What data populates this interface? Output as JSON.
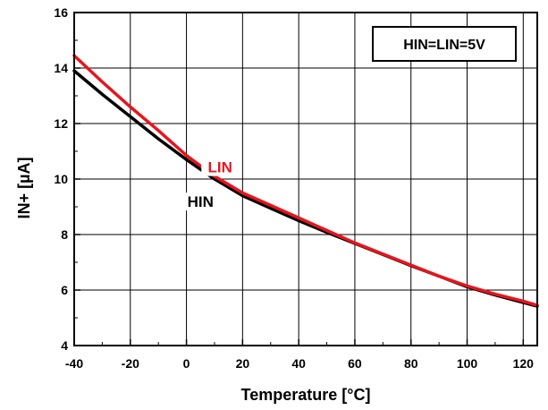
{
  "chart_data": {
    "type": "line",
    "title": "",
    "xlabel": "Temperature [°C]",
    "ylabel": "IN+ [µA]",
    "xlim": [
      -40,
      125
    ],
    "ylim": [
      4,
      16
    ],
    "grid": true,
    "legend": "none",
    "x_ticks": [
      -40,
      -20,
      0,
      20,
      40,
      60,
      80,
      100,
      120
    ],
    "y_ticks": [
      4,
      6,
      8,
      10,
      12,
      14,
      16
    ],
    "x_tick_labels": [
      "-40",
      "-20",
      "0",
      "20",
      "40",
      "60",
      "80",
      "100",
      "120"
    ],
    "y_tick_labels": [
      "4",
      "6",
      "8",
      "10",
      "12",
      "14",
      "16"
    ],
    "annotation": "HIN=LIN=5V",
    "series": [
      {
        "name": "LIN",
        "color": "#e8141e",
        "x": [
          -40,
          -30,
          -20,
          -10,
          0,
          10,
          20,
          30,
          40,
          50,
          60,
          70,
          80,
          90,
          100,
          110,
          120,
          125
        ],
        "y": [
          14.45,
          13.5,
          12.6,
          11.75,
          10.85,
          10.1,
          9.5,
          9.05,
          8.6,
          8.15,
          7.7,
          7.3,
          6.9,
          6.5,
          6.15,
          5.85,
          5.6,
          5.45
        ]
      },
      {
        "name": "HIN",
        "color": "#000000",
        "x": [
          -40,
          -30,
          -20,
          -10,
          0,
          10,
          20,
          30,
          40,
          50,
          60,
          70,
          80,
          90,
          100,
          110,
          120,
          125
        ],
        "y": [
          13.9,
          13.05,
          12.25,
          11.45,
          10.7,
          10.0,
          9.4,
          8.95,
          8.5,
          8.08,
          7.68,
          7.28,
          6.88,
          6.5,
          6.12,
          5.82,
          5.55,
          5.42
        ]
      }
    ]
  }
}
